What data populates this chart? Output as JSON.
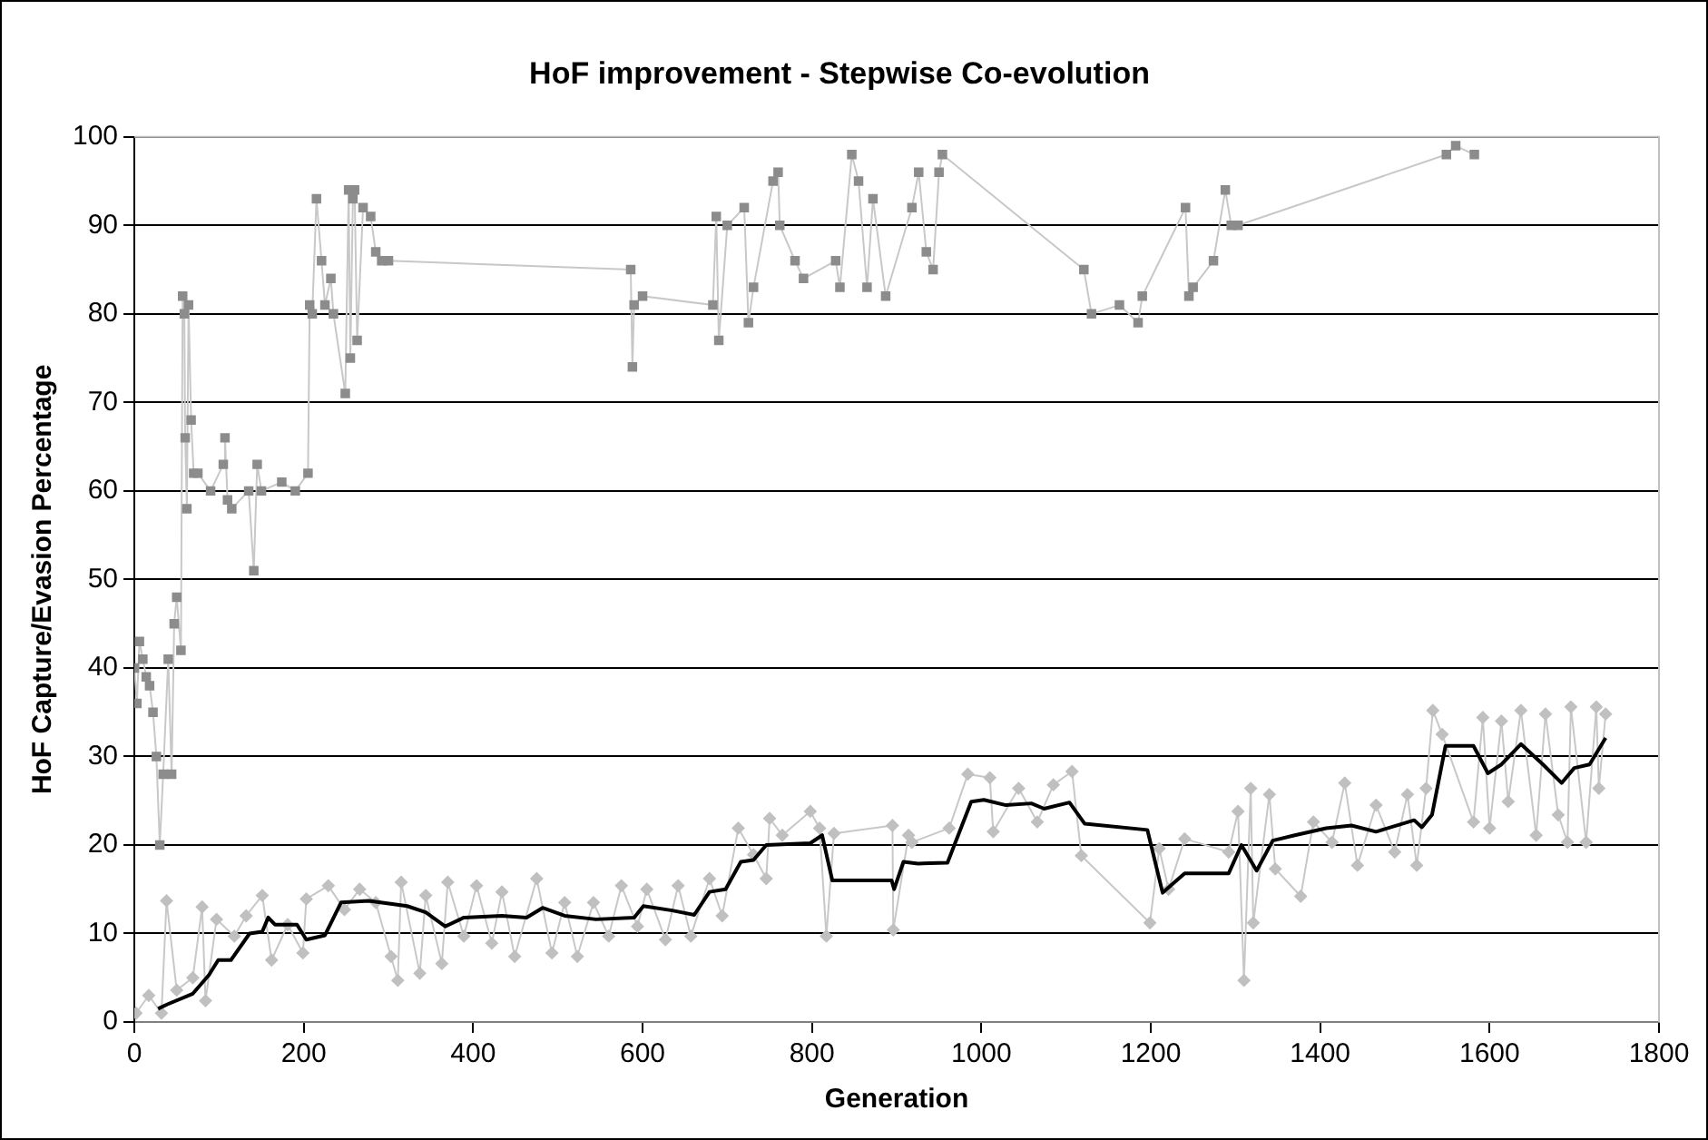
{
  "chart_data": {
    "type": "line",
    "title": "HoF improvement - Stepwise Co-evolution",
    "xlabel": "Generation",
    "ylabel": "HoF Capture/Evasion Percentage",
    "xlim": [
      0,
      1800
    ],
    "xticks": [
      0,
      200,
      400,
      600,
      800,
      1000,
      1200,
      1400,
      1600,
      1800
    ],
    "ylim": [
      0,
      100
    ],
    "yticks": [
      0,
      10,
      20,
      30,
      40,
      50,
      60,
      70,
      80,
      90,
      100
    ],
    "grid": "y",
    "legend": false,
    "line_style": "solid",
    "series": [
      {
        "color": "#8c8c8c",
        "marker": "square",
        "x": [
          0,
          3,
          6,
          10,
          14,
          18,
          22,
          26,
          30,
          34,
          40,
          44,
          47,
          50,
          55,
          57,
          59,
          60,
          62,
          64,
          67,
          70,
          75,
          90,
          105,
          107,
          110,
          115,
          135,
          141,
          145,
          150,
          174,
          190,
          205,
          207,
          210,
          215,
          221,
          225,
          232,
          235,
          249,
          253,
          255,
          258,
          260,
          263,
          270,
          279,
          285,
          292,
          300,
          586,
          588,
          590,
          600,
          683,
          687,
          690,
          700,
          720,
          725,
          731,
          754,
          760,
          762,
          780,
          790,
          828,
          833,
          847,
          855,
          865,
          872,
          887,
          918,
          926,
          935,
          943,
          950,
          954,
          1121,
          1130,
          1163,
          1185,
          1190,
          1241,
          1245,
          1250,
          1274,
          1288,
          1295,
          1303,
          1549,
          1560,
          1582
        ],
        "values": [
          40,
          36,
          43,
          41,
          39,
          38,
          35,
          30,
          20,
          28,
          41,
          28,
          45,
          48,
          42,
          82,
          80,
          66,
          58,
          81,
          68,
          62,
          62,
          60,
          63,
          66,
          59,
          58,
          60,
          51,
          63,
          60,
          61,
          60,
          62,
          81,
          80,
          93,
          86,
          81,
          84,
          80,
          71,
          94,
          75,
          93,
          94,
          77,
          92,
          91,
          87,
          86,
          86,
          85,
          74,
          81,
          82,
          81,
          91,
          77,
          90,
          92,
          79,
          83,
          95,
          96,
          90,
          86,
          84,
          86,
          83,
          98,
          95,
          83,
          93,
          82,
          92,
          96,
          87,
          85,
          96,
          98,
          85,
          80,
          81,
          79,
          82,
          92,
          82,
          83,
          86,
          94,
          90,
          90,
          98,
          99,
          98
        ]
      },
      {
        "color": "#c0c0c0",
        "marker": "diamond",
        "x": [
          2,
          17,
          32,
          38,
          50,
          69,
          80,
          84,
          97,
          118,
          132,
          151,
          162,
          181,
          199,
          203,
          229,
          248,
          266,
          285,
          303,
          311,
          315,
          337,
          344,
          363,
          370,
          389,
          404,
          422,
          434,
          449,
          475,
          493,
          508,
          523,
          542,
          560,
          575,
          594,
          605,
          627,
          642,
          657,
          679,
          694,
          713,
          731,
          746,
          750,
          765,
          798,
          809,
          817,
          826,
          895,
          896,
          914,
          918,
          962,
          984,
          1010,
          1014,
          1044,
          1066,
          1085,
          1107,
          1118,
          1199,
          1210,
          1221,
          1240,
          1292,
          1303,
          1310,
          1318,
          1321,
          1340,
          1347,
          1377,
          1392,
          1414,
          1429,
          1444,
          1466,
          1488,
          1503,
          1514,
          1525,
          1533,
          1544,
          1581,
          1592,
          1600,
          1614,
          1622,
          1637,
          1655,
          1666,
          1681,
          1692,
          1696,
          1714,
          1726,
          1729,
          1737
        ],
        "values": [
          1,
          3,
          1,
          13.7,
          3.6,
          5,
          13,
          2.4,
          11.6,
          9.7,
          12,
          14.3,
          7,
          11,
          7.8,
          13.9,
          15.4,
          12.7,
          15,
          13.5,
          7.4,
          4.7,
          15.8,
          5.5,
          14.3,
          6.6,
          15.8,
          9.7,
          15.4,
          8.9,
          14.7,
          7.4,
          16.2,
          7.8,
          13.5,
          7.4,
          13.5,
          9.7,
          15.4,
          10.8,
          15,
          9.3,
          15.4,
          9.7,
          16.2,
          12,
          21.9,
          18.9,
          16.2,
          23,
          21.1,
          23.8,
          21.9,
          9.7,
          21.3,
          22.2,
          10.4,
          21.1,
          20.3,
          21.9,
          28,
          27.6,
          21.5,
          26.4,
          22.6,
          26.8,
          28.3,
          18.8,
          11.2,
          19.6,
          15,
          20.7,
          19.2,
          23.8,
          4.7,
          26.4,
          11.2,
          25.7,
          17.3,
          14.2,
          22.6,
          20.3,
          27,
          17.7,
          24.5,
          19.2,
          25.7,
          17.7,
          26.4,
          35.2,
          32.5,
          22.6,
          34.4,
          21.9,
          34,
          24.9,
          35.2,
          21.1,
          34.8,
          23.4,
          20.3,
          35.6,
          20.3,
          35.6,
          26.4,
          34.8
        ]
      },
      {
        "color": "#000000",
        "marker": "none",
        "x": [
          28,
          39,
          69,
          88,
          99,
          114,
          136,
          151,
          158,
          166,
          192,
          203,
          225,
          244,
          277,
          322,
          344,
          367,
          389,
          434,
          463,
          482,
          508,
          545,
          590,
          601,
          635,
          661,
          679,
          698,
          716,
          731,
          746,
          798,
          812,
          824,
          894,
          897,
          908,
          925,
          960,
          988,
          1003,
          1029,
          1059,
          1074,
          1104,
          1122,
          1196,
          1214,
          1240,
          1292,
          1307,
          1325,
          1344,
          1370,
          1407,
          1437,
          1466,
          1511,
          1520,
          1532,
          1548,
          1581,
          1598,
          1614,
          1637,
          1663,
          1685,
          1700,
          1718,
          1737
        ],
        "values": [
          1.5,
          2,
          3.2,
          5.3,
          7,
          7,
          10,
          10.2,
          11.8,
          11,
          11,
          9.3,
          9.8,
          13.5,
          13.7,
          13.1,
          12.4,
          10.8,
          11.8,
          12,
          11.8,
          12.9,
          12,
          11.6,
          11.8,
          13.1,
          12.6,
          12.1,
          14.7,
          15,
          18.1,
          18.3,
          20,
          20.2,
          21.1,
          16,
          16,
          15,
          18.1,
          17.9,
          18,
          24.9,
          25.1,
          24.5,
          24.7,
          24.1,
          24.8,
          22.4,
          21.7,
          14.6,
          16.8,
          16.8,
          20,
          17.1,
          20.5,
          21.1,
          21.9,
          22.2,
          21.5,
          22.8,
          22,
          23.4,
          31.2,
          31.2,
          28.1,
          29.1,
          31.4,
          29.1,
          27,
          28.7,
          29.1,
          32.1
        ]
      }
    ]
  }
}
